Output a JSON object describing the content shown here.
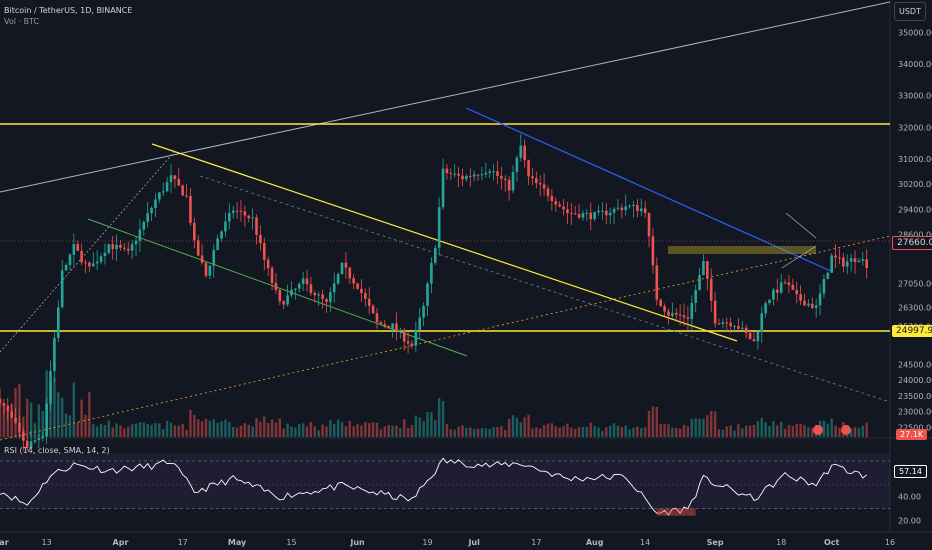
{
  "header": {
    "symbol_line": "Bitcoin / TetherUS, 1D, BINANCE",
    "volume_label": "Vol · BTC",
    "currency": "USDT"
  },
  "price_axis": {
    "ticks": [
      35000,
      34000,
      33000,
      32000,
      31000,
      30200,
      29400,
      28600,
      27050,
      26300,
      25700,
      24500,
      24000,
      23500,
      23000,
      22500
    ],
    "tick_labels": [
      "35000.00",
      "34000.00",
      "33000.00",
      "32000.00",
      "31000.00",
      "30200.00",
      "29400.00",
      "28600.00",
      "27050.00",
      "26300.00",
      "25700.00",
      "24500.00",
      "24000.00",
      "23500.00",
      "23000.00",
      "22500.00"
    ],
    "current_price_label": "27660.00",
    "level_label": "24997.99",
    "volume_label": "27.1K"
  },
  "rsi_panel": {
    "label": "RSI (14, close, SMA, 14, 2)",
    "value_label": "57.14",
    "ticks": [
      "60.00",
      "40.00",
      "20.00"
    ]
  },
  "time_axis": [
    "Mar",
    "13",
    "Apr",
    "17",
    "May",
    "15",
    "Jun",
    "19",
    "Jul",
    "17",
    "Aug",
    "14",
    "Sep",
    "18",
    "Oct",
    "16"
  ],
  "colors": {
    "background": "#131722",
    "up": "#26a69a",
    "down": "#ef5350",
    "yellow": "#ffeb3b",
    "blue": "#2962ff",
    "green": "#4caf50"
  },
  "chart_data": {
    "type": "candlestick",
    "title": "Bitcoin / TetherUS, 1D, BINANCE",
    "x_range": [
      "2023-03-01",
      "2023-10-16"
    ],
    "ylim": [
      22200,
      35900
    ],
    "horizontal_levels": [
      31650,
      24998
    ],
    "price_path": [
      [
        "2023-03-01",
        23400
      ],
      [
        "2023-03-08",
        21900
      ],
      [
        "2023-03-12",
        22300
      ],
      [
        "2023-03-14",
        24300
      ],
      [
        "2023-03-17",
        27400
      ],
      [
        "2023-03-20",
        28200
      ],
      [
        "2023-03-24",
        27500
      ],
      [
        "2023-03-29",
        28300
      ],
      [
        "2023-04-03",
        28000
      ],
      [
        "2023-04-10",
        29700
      ],
      [
        "2023-04-14",
        30400
      ],
      [
        "2023-04-18",
        29800
      ],
      [
        "2023-04-20",
        28300
      ],
      [
        "2023-04-23",
        27300
      ],
      [
        "2023-04-26",
        28500
      ],
      [
        "2023-04-30",
        29400
      ],
      [
        "2023-05-05",
        29100
      ],
      [
        "2023-05-08",
        27800
      ],
      [
        "2023-05-12",
        26400
      ],
      [
        "2023-05-18",
        27100
      ],
      [
        "2023-05-24",
        26400
      ],
      [
        "2023-05-28",
        27600
      ],
      [
        "2023-06-01",
        27000
      ],
      [
        "2023-06-06",
        25800
      ],
      [
        "2023-06-10",
        25700
      ],
      [
        "2023-06-15",
        25100
      ],
      [
        "2023-06-18",
        26300
      ],
      [
        "2023-06-21",
        28300
      ],
      [
        "2023-06-23",
        30600
      ],
      [
        "2023-06-28",
        30400
      ],
      [
        "2023-07-05",
        30700
      ],
      [
        "2023-07-10",
        30100
      ],
      [
        "2023-07-13",
        31400
      ],
      [
        "2023-07-15",
        30400
      ],
      [
        "2023-07-20",
        29900
      ],
      [
        "2023-07-25",
        29300
      ],
      [
        "2023-08-01",
        29200
      ],
      [
        "2023-08-09",
        29500
      ],
      [
        "2023-08-14",
        29400
      ],
      [
        "2023-08-17",
        26600
      ],
      [
        "2023-08-20",
        26100
      ],
      [
        "2023-08-25",
        26000
      ],
      [
        "2023-08-29",
        27700
      ],
      [
        "2023-09-01",
        25900
      ],
      [
        "2023-09-06",
        25800
      ],
      [
        "2023-09-11",
        25200
      ],
      [
        "2023-09-14",
        26500
      ],
      [
        "2023-09-19",
        27100
      ],
      [
        "2023-09-22",
        26600
      ],
      [
        "2023-09-27",
        26300
      ],
      [
        "2023-10-01",
        27900
      ],
      [
        "2023-10-04",
        27700
      ],
      [
        "2023-10-08",
        27900
      ],
      [
        "2023-10-10",
        27660
      ]
    ],
    "rsi_path": [
      [
        "2023-03-01",
        45
      ],
      [
        "2023-03-08",
        33
      ],
      [
        "2023-03-14",
        58
      ],
      [
        "2023-03-20",
        67
      ],
      [
        "2023-03-29",
        62
      ],
      [
        "2023-04-10",
        66
      ],
      [
        "2023-04-14",
        70
      ],
      [
        "2023-04-20",
        44
      ],
      [
        "2023-04-30",
        55
      ],
      [
        "2023-05-12",
        40
      ],
      [
        "2023-05-28",
        49
      ],
      [
        "2023-06-15",
        37
      ],
      [
        "2023-06-23",
        70
      ],
      [
        "2023-07-05",
        66
      ],
      [
        "2023-07-13",
        68
      ],
      [
        "2023-07-25",
        55
      ],
      [
        "2023-08-09",
        57
      ],
      [
        "2023-08-17",
        26
      ],
      [
        "2023-08-25",
        30
      ],
      [
        "2023-08-29",
        55
      ],
      [
        "2023-09-11",
        38
      ],
      [
        "2023-09-19",
        58
      ],
      [
        "2023-09-27",
        50
      ],
      [
        "2023-10-01",
        66
      ],
      [
        "2023-10-10",
        57
      ]
    ],
    "rsi_value": 57.14
  }
}
